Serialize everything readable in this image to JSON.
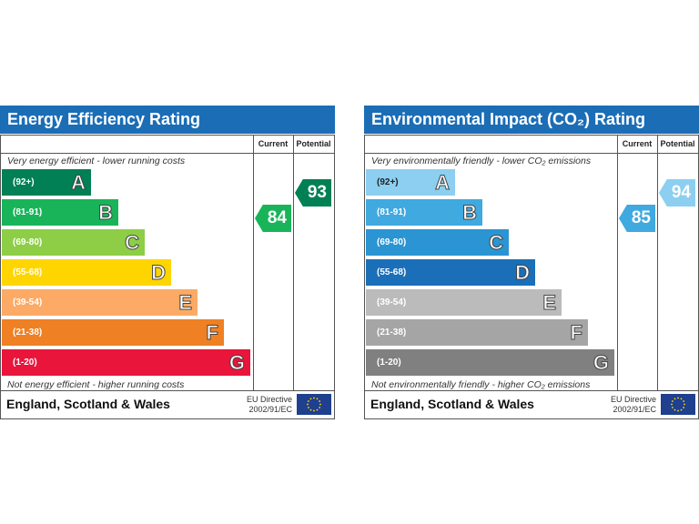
{
  "chart_data": [
    {
      "type": "table",
      "title": "Energy Efficiency Rating",
      "columns": [
        "Current",
        "Potential"
      ],
      "top_note": "Very energy efficient - lower running costs",
      "bottom_note": "Not energy efficient - higher running costs",
      "bands": [
        {
          "range": "(92+)",
          "letter": "A",
          "color": "#008054"
        },
        {
          "range": "(81-91)",
          "letter": "B",
          "color": "#19b459"
        },
        {
          "range": "(69-80)",
          "letter": "C",
          "color": "#8dce46"
        },
        {
          "range": "(55-68)",
          "letter": "D",
          "color": "#ffd500"
        },
        {
          "range": "(39-54)",
          "letter": "E",
          "color": "#fcaa65"
        },
        {
          "range": "(21-38)",
          "letter": "F",
          "color": "#ef8023"
        },
        {
          "range": "(1-20)",
          "letter": "G",
          "color": "#e9153b"
        }
      ],
      "current": {
        "value": "84",
        "band": 1,
        "color": "#19b459"
      },
      "potential": {
        "value": "93",
        "band": 0,
        "color": "#008054"
      },
      "region": "England, Scotland & Wales",
      "directive": [
        "EU Directive",
        "2002/91/EC"
      ]
    },
    {
      "type": "table",
      "title": "Environmental Impact (CO₂) Rating",
      "columns": [
        "Current",
        "Potential"
      ],
      "top_note": "Very environmentally friendly - lower CO₂ emissions",
      "bottom_note": "Not environmentally friendly - higher CO₂ emissions",
      "bands": [
        {
          "range": "(92+)",
          "letter": "A",
          "color": "#8ccff0"
        },
        {
          "range": "(81-91)",
          "letter": "B",
          "color": "#3fa9e0"
        },
        {
          "range": "(69-80)",
          "letter": "C",
          "color": "#2a95d2"
        },
        {
          "range": "(55-68)",
          "letter": "D",
          "color": "#1b6fb8"
        },
        {
          "range": "(39-54)",
          "letter": "E",
          "color": "#bbbbbb"
        },
        {
          "range": "(21-38)",
          "letter": "F",
          "color": "#a5a5a5"
        },
        {
          "range": "(1-20)",
          "letter": "G",
          "color": "#808080"
        }
      ],
      "current": {
        "value": "85",
        "band": 1,
        "color": "#3fa9e0"
      },
      "potential": {
        "value": "94",
        "band": 0,
        "color": "#8ccff0"
      },
      "region": "England, Scotland & Wales",
      "directive": [
        "EU Directive",
        "2002/91/EC"
      ]
    }
  ]
}
